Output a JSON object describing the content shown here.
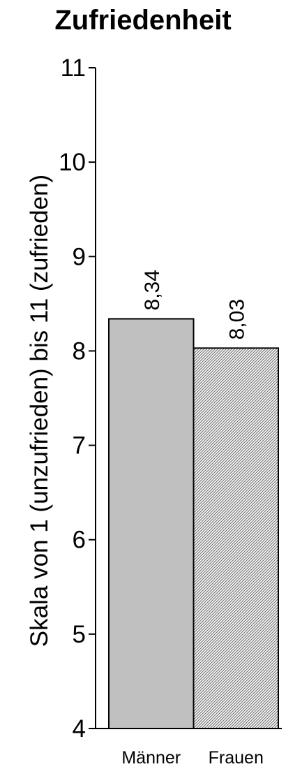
{
  "chart_data": {
    "type": "bar",
    "title": "Zufriedenheit",
    "ylabel": "Skala von 1 (unzufrieden) bis 11 (zufrieden)",
    "xlabel": "",
    "categories": [
      "Männer",
      "Frauen"
    ],
    "values": [
      8.34,
      8.03
    ],
    "value_labels": [
      "8,34",
      "8,03"
    ],
    "ylim": [
      4,
      11
    ],
    "yticks": [
      4,
      5,
      6,
      7,
      8,
      9,
      10,
      11
    ],
    "ytick_labels": [
      "4",
      "5",
      "6",
      "7",
      "8",
      "9",
      "10",
      "11"
    ],
    "grid": false,
    "legend": "none",
    "bar_fills": [
      "solid",
      "hatched"
    ],
    "colors": {
      "bar_solid": "#c0c0c0",
      "bar_hatch_bg": "#ffffff",
      "bar_hatch_line": "#777777",
      "axis": "#000000"
    }
  }
}
